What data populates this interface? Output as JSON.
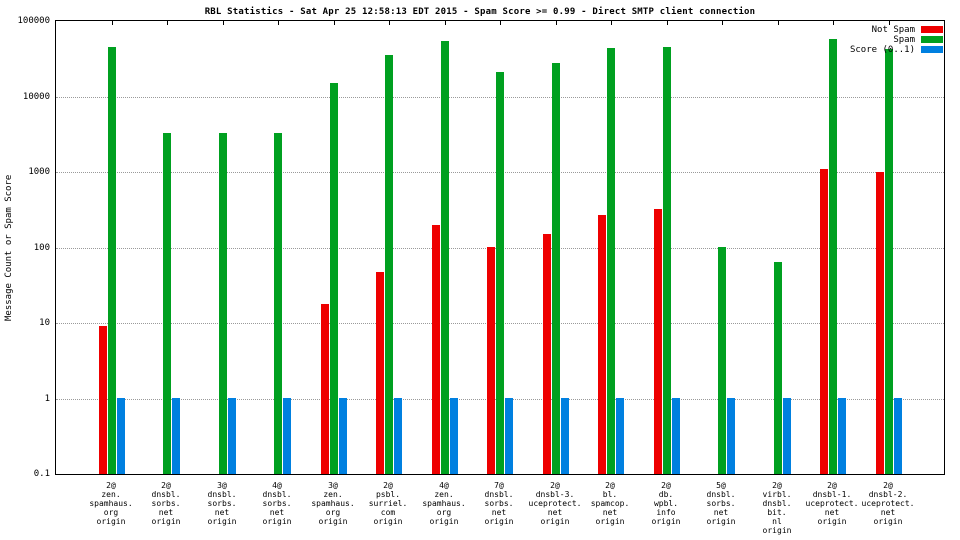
{
  "page": {
    "background": "#ffffff"
  },
  "chart_data": {
    "type": "bar",
    "title": "RBL Statistics - Sat Apr 25 12:58:13 EDT 2015 - Spam Score >= 0.99 - Direct SMTP client connection",
    "ylabel": "Message Count or Spam Score",
    "xlabel": "",
    "y_scale": "log",
    "ylim": [
      0.1,
      100000
    ],
    "y_ticks": [
      0.1,
      1,
      10,
      100,
      1000,
      10000,
      100000
    ],
    "y_tick_labels": [
      "0.1",
      "1",
      "10",
      "100",
      "1000",
      "10000",
      "100000"
    ],
    "grid": true,
    "legend_position": "top-right",
    "categories": [
      [
        "2@",
        "zen.",
        "spamhaus.",
        "org",
        "origin"
      ],
      [
        "2@",
        "dnsbl.",
        "sorbs.",
        "net",
        "origin"
      ],
      [
        "3@",
        "dnsbl.",
        "sorbs.",
        "net",
        "origin"
      ],
      [
        "4@",
        "dnsbl.",
        "sorbs.",
        "net",
        "origin"
      ],
      [
        "3@",
        "zen.",
        "spamhaus.",
        "org",
        "origin"
      ],
      [
        "2@",
        "psbl.",
        "surriel.",
        "com",
        "origin"
      ],
      [
        "4@",
        "zen.",
        "spamhaus.",
        "org",
        "origin"
      ],
      [
        "7@",
        "dnsbl.",
        "sorbs.",
        "net",
        "origin"
      ],
      [
        "2@",
        "dnsbl-3.",
        "uceprotect.",
        "net",
        "origin"
      ],
      [
        "2@",
        "bl.",
        "spamcop.",
        "net",
        "origin"
      ],
      [
        "2@",
        "db.",
        "wpbl.",
        "info",
        "origin"
      ],
      [
        "5@",
        "dnsbl.",
        "sorbs.",
        "net",
        "origin"
      ],
      [
        "2@",
        "virbl.",
        "dnsbl.",
        "bit.",
        "nl",
        "origin"
      ],
      [
        "2@",
        "dnsbl-1.",
        "uceprotect.",
        "net",
        "origin"
      ],
      [
        "2@",
        "dnsbl-2.",
        "uceprotect.",
        "net",
        "origin"
      ]
    ],
    "series": [
      {
        "name": "Not Spam",
        "color": "#ee0000",
        "values": [
          9,
          null,
          null,
          null,
          18,
          48,
          200,
          100,
          150,
          270,
          320,
          null,
          null,
          1100,
          1000
        ]
      },
      {
        "name": "Spam",
        "color": "#00a020",
        "values": [
          45000,
          3300,
          3300,
          3300,
          15000,
          35000,
          55000,
          21000,
          28000,
          44000,
          45000,
          100,
          65,
          58000,
          42000
        ]
      },
      {
        "name": "Score (0..1)",
        "color": "#0080e0",
        "values": [
          1,
          1,
          1,
          1,
          1,
          1,
          1,
          1,
          1,
          1,
          1,
          1,
          1,
          1,
          1
        ]
      }
    ]
  }
}
